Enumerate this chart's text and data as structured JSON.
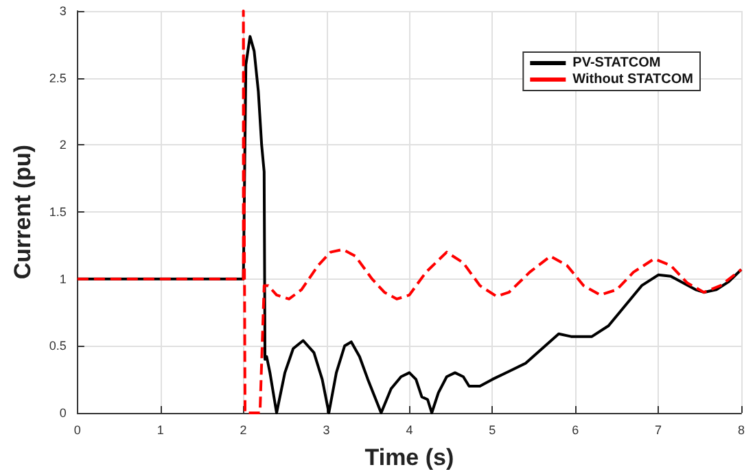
{
  "chart_data": {
    "type": "line",
    "xlabel": "Time (s)",
    "ylabel": "Current (pu)",
    "xlim": [
      0,
      8
    ],
    "ylim": [
      0,
      3
    ],
    "xticks": [
      0,
      1,
      2,
      3,
      4,
      5,
      6,
      7,
      8
    ],
    "yticks": [
      0,
      0.5,
      1,
      1.5,
      2,
      2.5,
      3
    ],
    "grid": true,
    "legend": "top right",
    "marker": "none",
    "series": [
      {
        "name": "PV-STATCOM",
        "color": "#000000",
        "line_style": "solid",
        "x": [
          0,
          2,
          2.03,
          2.08,
          2.13,
          2.18,
          2.22,
          2.25,
          2.26,
          2.28,
          2.32,
          2.4,
          2.5,
          2.6,
          2.72,
          2.85,
          2.95,
          3.03,
          3.12,
          3.22,
          3.3,
          3.4,
          3.5,
          3.66,
          3.78,
          3.9,
          4.0,
          4.08,
          4.15,
          4.22,
          4.27,
          4.35,
          4.45,
          4.55,
          4.65,
          4.72,
          4.77,
          4.85,
          5.0,
          5.2,
          5.4,
          5.6,
          5.8,
          5.95,
          6.2,
          6.4,
          6.6,
          6.8,
          7.0,
          7.15,
          7.3,
          7.45,
          7.55,
          7.7,
          7.85,
          8.0
        ],
        "values": [
          1,
          1,
          2.6,
          2.81,
          2.7,
          2.4,
          2.0,
          1.8,
          0.4,
          0.42,
          0.3,
          0,
          0.3,
          0.48,
          0.54,
          0.45,
          0.25,
          0,
          0.3,
          0.5,
          0.53,
          0.42,
          0.25,
          0,
          0.18,
          0.27,
          0.3,
          0.25,
          0.12,
          0.1,
          0,
          0.15,
          0.27,
          0.3,
          0.27,
          0.2,
          0.2,
          0.2,
          0.25,
          0.31,
          0.37,
          0.48,
          0.59,
          0.57,
          0.57,
          0.65,
          0.8,
          0.95,
          1.03,
          1.02,
          0.97,
          0.92,
          0.9,
          0.92,
          0.98,
          1.07
        ]
      },
      {
        "name": "Without STATCOM",
        "color": "#ff0000",
        "line_style": "dashed",
        "x": [
          0,
          2,
          2.0,
          2.02,
          2.2,
          2.25,
          2.3,
          2.4,
          2.55,
          2.7,
          2.9,
          3.05,
          3.2,
          3.35,
          3.55,
          3.7,
          3.85,
          4.0,
          4.2,
          4.45,
          4.65,
          4.85,
          5.05,
          5.2,
          5.45,
          5.7,
          5.9,
          6.1,
          6.3,
          6.5,
          6.7,
          6.95,
          7.15,
          7.35,
          7.55,
          7.75,
          8.0
        ],
        "values": [
          1,
          1,
          3,
          0,
          0,
          0.95,
          0.95,
          0.88,
          0.85,
          0.92,
          1.1,
          1.2,
          1.22,
          1.17,
          1.0,
          0.9,
          0.85,
          0.88,
          1.05,
          1.2,
          1.12,
          0.95,
          0.87,
          0.9,
          1.05,
          1.17,
          1.1,
          0.95,
          0.88,
          0.92,
          1.05,
          1.15,
          1.1,
          0.97,
          0.9,
          0.95,
          1.07
        ]
      }
    ]
  }
}
